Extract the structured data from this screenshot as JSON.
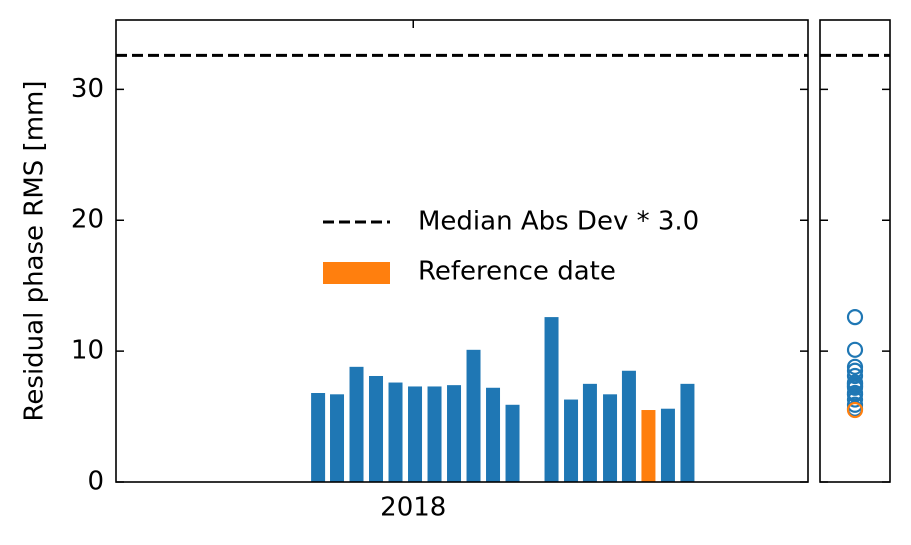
{
  "chart_data": {
    "type": "bar",
    "ylabel": "Residual phase RMS [mm]",
    "x": [
      2017.839,
      2017.871,
      2017.904,
      2017.937,
      2017.97,
      2018.003,
      2018.036,
      2018.069,
      2018.102,
      2018.135,
      2018.168,
      2018.234,
      2018.267,
      2018.299,
      2018.333,
      2018.365,
      2018.398,
      2018.431,
      2018.464
    ],
    "values": [
      6.8,
      6.7,
      8.8,
      8.1,
      7.6,
      7.3,
      7.3,
      7.4,
      10.1,
      7.2,
      5.9,
      12.6,
      6.3,
      7.5,
      6.7,
      8.5,
      5.5,
      5.6,
      7.5
    ],
    "colors": [
      "#1f77b4",
      "#1f77b4",
      "#1f77b4",
      "#1f77b4",
      "#1f77b4",
      "#1f77b4",
      "#1f77b4",
      "#1f77b4",
      "#1f77b4",
      "#1f77b4",
      "#1f77b4",
      "#1f77b4",
      "#1f77b4",
      "#1f77b4",
      "#1f77b4",
      "#1f77b4",
      "#ff7f0e",
      "#1f77b4",
      "#1f77b4"
    ],
    "threshold": {
      "name": "Median Abs Dev * 3.0",
      "value": 32.6,
      "color": "#000000"
    },
    "reference": {
      "name": "Reference date",
      "color": "#ff7f0e"
    },
    "xlim": [
      2017.497,
      2018.668
    ],
    "xticks": [
      {
        "value": 2018,
        "label": "2018"
      }
    ],
    "ylim": [
      0,
      35.3
    ],
    "yticks": [
      0,
      10,
      20,
      30
    ]
  }
}
